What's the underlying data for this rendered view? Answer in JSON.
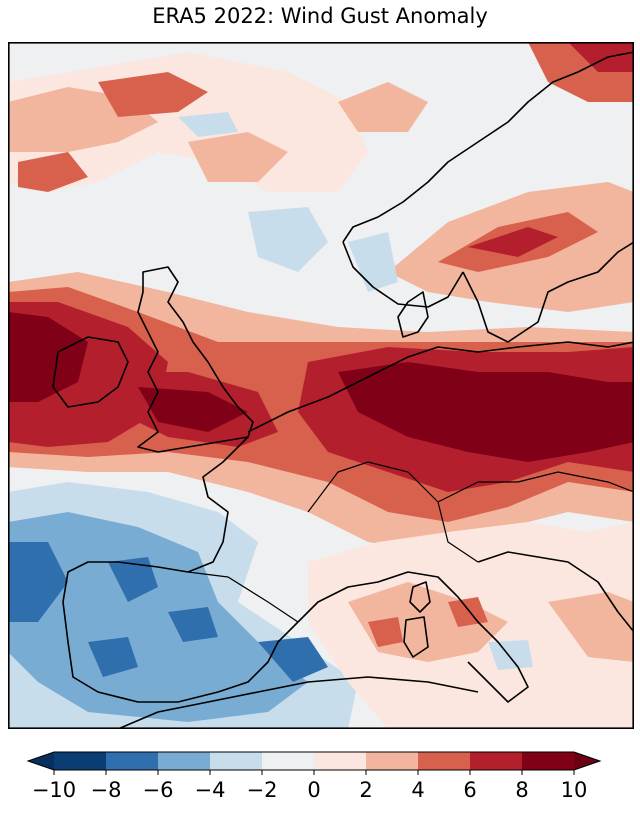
{
  "title": "ERA5 2022: Wind Gust Anomaly",
  "colorbar": {
    "ticks": [
      "−10",
      "−8",
      "−6",
      "−4",
      "−2",
      "0",
      "2",
      "4",
      "6",
      "8",
      "10"
    ],
    "levels": [
      -10,
      -8,
      -6,
      -4,
      -2,
      0,
      2,
      4,
      6,
      8,
      10
    ],
    "colors": [
      "#0a3d73",
      "#2f6fae",
      "#79acd3",
      "#c8ddeb",
      "#eef0f2",
      "#fbe7e0",
      "#f2b59d",
      "#d8614e",
      "#b41f2e",
      "#800018"
    ],
    "under_color": "#073061",
    "over_color": "#6a0012",
    "extend": "both"
  },
  "map": {
    "frame_color": "#000000",
    "coastline_color": "#000000"
  }
}
